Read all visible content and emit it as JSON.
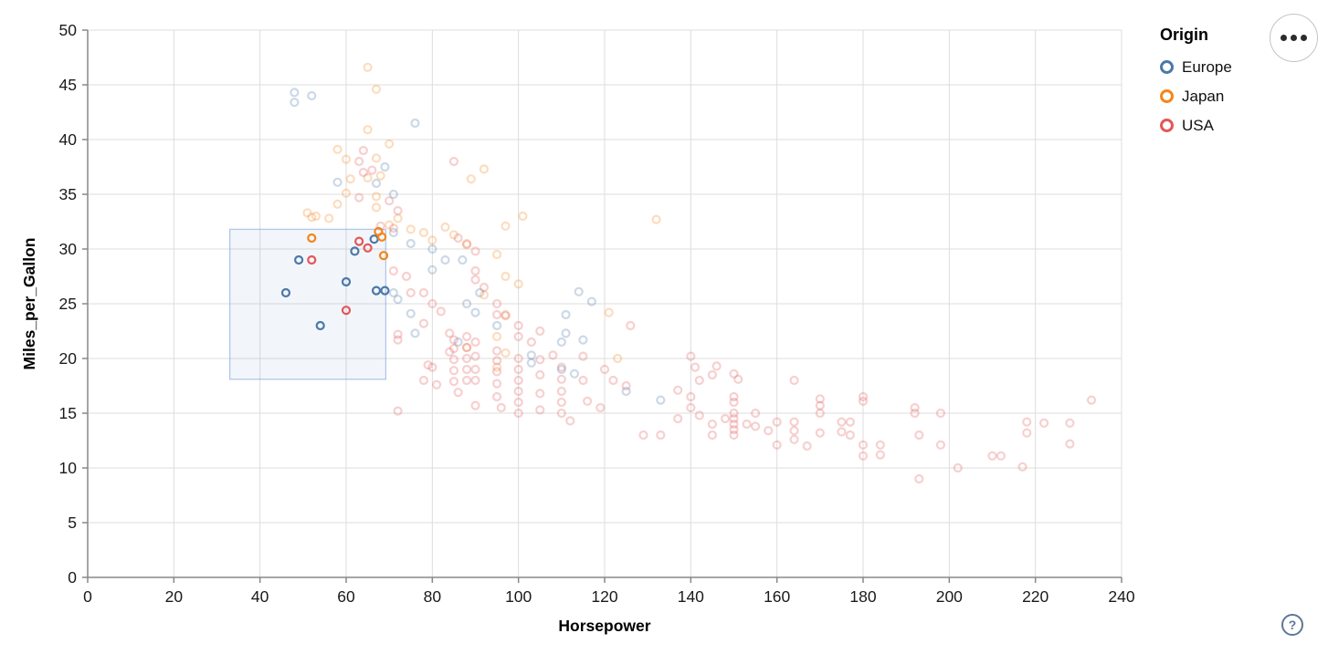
{
  "chart_data": {
    "type": "scatter",
    "title": "",
    "xlabel": "Horsepower",
    "ylabel": "Miles_per_Gallon",
    "xlim": [
      0,
      240
    ],
    "ylim": [
      0,
      50
    ],
    "xticks": [
      0,
      20,
      40,
      60,
      80,
      100,
      120,
      140,
      160,
      180,
      200,
      220,
      240
    ],
    "yticks": [
      0,
      5,
      10,
      15,
      20,
      25,
      30,
      35,
      40,
      45,
      50
    ],
    "grid": true,
    "legend": {
      "title": "Origin",
      "position": "top-right",
      "entries": [
        {
          "label": "Europe",
          "color": "#4c78a8"
        },
        {
          "label": "Japan",
          "color": "#f58518"
        },
        {
          "label": "USA",
          "color": "#e45756"
        }
      ]
    },
    "brush": {
      "x": [
        33,
        69.2
      ],
      "y": [
        18.1,
        31.8
      ]
    },
    "style": {
      "marker": "open-circle",
      "radius": 4,
      "stroke_width": 2.2,
      "unselected_opacity": 0.28,
      "grid_color": "#dddddd",
      "axis_color": "#888888",
      "label_color": "#1a1a1a",
      "brush_fill": "rgba(92,140,210,0.08)",
      "brush_stroke": "rgba(130,165,220,0.6)"
    },
    "series": [
      {
        "name": "Europe",
        "color": "#4c78a8",
        "selected": [
          [
            46,
            26
          ],
          [
            49,
            29
          ],
          [
            54,
            23
          ],
          [
            60,
            27
          ],
          [
            62,
            29.8
          ],
          [
            66.5,
            30.9
          ],
          [
            67,
            26.2
          ],
          [
            69,
            26.2
          ]
        ],
        "points": [
          [
            48,
            44.3
          ],
          [
            48,
            43.4
          ],
          [
            52,
            44
          ],
          [
            76,
            41.5
          ],
          [
            69,
            37.5
          ],
          [
            58,
            36.1
          ],
          [
            67,
            36
          ],
          [
            71,
            35
          ],
          [
            71,
            31.5
          ],
          [
            75,
            30.5
          ],
          [
            80,
            30
          ],
          [
            87,
            29
          ],
          [
            83,
            29
          ],
          [
            80,
            28.1
          ],
          [
            71,
            26
          ],
          [
            72,
            25.4
          ],
          [
            91,
            26
          ],
          [
            88,
            25
          ],
          [
            90,
            24.2
          ],
          [
            75,
            24.1
          ],
          [
            76,
            22.3
          ],
          [
            95,
            23
          ],
          [
            86,
            21.5
          ],
          [
            110,
            21.5
          ],
          [
            103,
            20.3
          ],
          [
            114,
            26.1
          ],
          [
            117,
            25.2
          ],
          [
            111,
            24
          ],
          [
            111,
            22.3
          ],
          [
            115,
            21.7
          ],
          [
            103,
            19.6
          ],
          [
            110,
            19
          ],
          [
            113,
            18.6
          ],
          [
            125,
            17
          ],
          [
            133,
            16.2
          ]
        ]
      },
      {
        "name": "Japan",
        "color": "#f58518",
        "selected": [
          [
            52,
            31
          ],
          [
            67.5,
            31.6
          ],
          [
            68.3,
            31.1
          ],
          [
            68.7,
            29.4
          ]
        ],
        "points": [
          [
            65,
            46.6
          ],
          [
            67,
            44.6
          ],
          [
            65,
            40.9
          ],
          [
            70,
            39.6
          ],
          [
            58,
            39.1
          ],
          [
            60,
            38.2
          ],
          [
            67,
            38.3
          ],
          [
            68,
            36.7
          ],
          [
            61,
            36.4
          ],
          [
            65,
            36.5
          ],
          [
            60,
            35.1
          ],
          [
            67,
            34.8
          ],
          [
            67,
            33.8
          ],
          [
            53,
            33
          ],
          [
            51,
            33.3
          ],
          [
            52,
            32.9
          ],
          [
            56,
            32.8
          ],
          [
            58,
            34.1
          ],
          [
            70,
            32.2
          ],
          [
            72,
            32.8
          ],
          [
            75,
            31.8
          ],
          [
            78,
            31.5
          ],
          [
            80,
            30.8
          ],
          [
            83,
            32
          ],
          [
            85,
            31.3
          ],
          [
            88,
            30.5
          ],
          [
            92,
            37.3
          ],
          [
            89,
            36.4
          ],
          [
            97,
            32.1
          ],
          [
            101,
            33
          ],
          [
            132,
            32.7
          ],
          [
            95,
            29.5
          ],
          [
            97,
            27.5
          ],
          [
            100,
            26.8
          ],
          [
            92,
            25.8
          ],
          [
            97,
            24
          ],
          [
            95,
            22
          ],
          [
            97,
            20.5
          ],
          [
            95,
            19.2
          ],
          [
            88,
            21
          ],
          [
            121,
            24.2
          ],
          [
            123,
            20
          ]
        ]
      },
      {
        "name": "USA",
        "color": "#e45756",
        "selected": [
          [
            52,
            29
          ],
          [
            60,
            24.4
          ],
          [
            63,
            30.7
          ],
          [
            65,
            30.1
          ]
        ],
        "points": [
          [
            64,
            39
          ],
          [
            63,
            38
          ],
          [
            64,
            37
          ],
          [
            66,
            37.2
          ],
          [
            63,
            34.7
          ],
          [
            70,
            34.4
          ],
          [
            85,
            38
          ],
          [
            72,
            33.5
          ],
          [
            71,
            31.9
          ],
          [
            68,
            32.1
          ],
          [
            71,
            28
          ],
          [
            74,
            27.5
          ],
          [
            78,
            26
          ],
          [
            80,
            25
          ],
          [
            75,
            26
          ],
          [
            82,
            24.3
          ],
          [
            86,
            31
          ],
          [
            88,
            30.4
          ],
          [
            90,
            29.8
          ],
          [
            90,
            28
          ],
          [
            90,
            27.2
          ],
          [
            95,
            25
          ],
          [
            95,
            24
          ],
          [
            97,
            23.9
          ],
          [
            100,
            23
          ],
          [
            100,
            22
          ],
          [
            103,
            21.5
          ],
          [
            105,
            22.5
          ],
          [
            92,
            26.5
          ],
          [
            72,
            21.7
          ],
          [
            72,
            22.2
          ],
          [
            72,
            15.2
          ],
          [
            78,
            23.2
          ],
          [
            78,
            18
          ],
          [
            79,
            19.4
          ],
          [
            84,
            20.6
          ],
          [
            80,
            19.2
          ],
          [
            84,
            22.3
          ],
          [
            81,
            17.6
          ],
          [
            85,
            21.7
          ],
          [
            85,
            20.9
          ],
          [
            85,
            19.9
          ],
          [
            85,
            18.9
          ],
          [
            85,
            17.9
          ],
          [
            86,
            16.9
          ],
          [
            88,
            22
          ],
          [
            88,
            21
          ],
          [
            88,
            20
          ],
          [
            88,
            19
          ],
          [
            88,
            18
          ],
          [
            90,
            21.5
          ],
          [
            90,
            20.2
          ],
          [
            90,
            19
          ],
          [
            90,
            18
          ],
          [
            90,
            15.7
          ],
          [
            95,
            20.7
          ],
          [
            95,
            19.8
          ],
          [
            95,
            18.8
          ],
          [
            95,
            17.7
          ],
          [
            95,
            16.5
          ],
          [
            96,
            15.5
          ],
          [
            100,
            20
          ],
          [
            100,
            19
          ],
          [
            100,
            18
          ],
          [
            100,
            17
          ],
          [
            100,
            16
          ],
          [
            100,
            15
          ],
          [
            105,
            19.9
          ],
          [
            105,
            18.5
          ],
          [
            105,
            16.8
          ],
          [
            105,
            15.3
          ],
          [
            108,
            20.3
          ],
          [
            110,
            19.2
          ],
          [
            110,
            18.1
          ],
          [
            110,
            17
          ],
          [
            110,
            16
          ],
          [
            110,
            15
          ],
          [
            112,
            14.3
          ],
          [
            115,
            20.2
          ],
          [
            115,
            18
          ],
          [
            116,
            16.1
          ],
          [
            119,
            15.5
          ],
          [
            120,
            19
          ],
          [
            122,
            18
          ],
          [
            125,
            17.5
          ],
          [
            126,
            23
          ],
          [
            129,
            13
          ],
          [
            133,
            13
          ],
          [
            137,
            14.5
          ],
          [
            140,
            20.2
          ],
          [
            141,
            19.2
          ],
          [
            142,
            18
          ],
          [
            145,
            18.5
          ],
          [
            146,
            19.3
          ],
          [
            150,
            18.6
          ],
          [
            151,
            18.1
          ],
          [
            137,
            17.1
          ],
          [
            140,
            16.5
          ],
          [
            140,
            15.5
          ],
          [
            142,
            14.8
          ],
          [
            145,
            14
          ],
          [
            145,
            13
          ],
          [
            148,
            14.5
          ],
          [
            150,
            16.5
          ],
          [
            150,
            16
          ],
          [
            150,
            15
          ],
          [
            150,
            14.5
          ],
          [
            150,
            14
          ],
          [
            150,
            13.5
          ],
          [
            150,
            13
          ],
          [
            153,
            14
          ],
          [
            155,
            15
          ],
          [
            155,
            13.8
          ],
          [
            164,
            18
          ],
          [
            170,
            16.3
          ],
          [
            170,
            15.7
          ],
          [
            170,
            15
          ],
          [
            160,
            14.2
          ],
          [
            158,
            13.4
          ],
          [
            160,
            12.1
          ],
          [
            164,
            14.2
          ],
          [
            164,
            13.4
          ],
          [
            164,
            12.6
          ],
          [
            170,
            13.2
          ],
          [
            175,
            14.2
          ],
          [
            175,
            13.3
          ],
          [
            180,
            16.5
          ],
          [
            180,
            16.1
          ],
          [
            180,
            12.1
          ],
          [
            180,
            11.1
          ],
          [
            167,
            12
          ],
          [
            177,
            14.2
          ],
          [
            177,
            13
          ],
          [
            184,
            12.1
          ],
          [
            184,
            11.2
          ],
          [
            192,
            15.5
          ],
          [
            192,
            15
          ],
          [
            193,
            13
          ],
          [
            193,
            9
          ],
          [
            198,
            15
          ],
          [
            198,
            12.1
          ],
          [
            202,
            10
          ],
          [
            210,
            11.1
          ],
          [
            212,
            11.1
          ],
          [
            217,
            10.1
          ],
          [
            218,
            14.2
          ],
          [
            218,
            13.2
          ],
          [
            222,
            14.1
          ],
          [
            228,
            14.1
          ],
          [
            228,
            12.2
          ],
          [
            233,
            16.2
          ]
        ]
      }
    ]
  },
  "controls": {
    "menu_icon": "ellipsis",
    "help_label": "?"
  }
}
